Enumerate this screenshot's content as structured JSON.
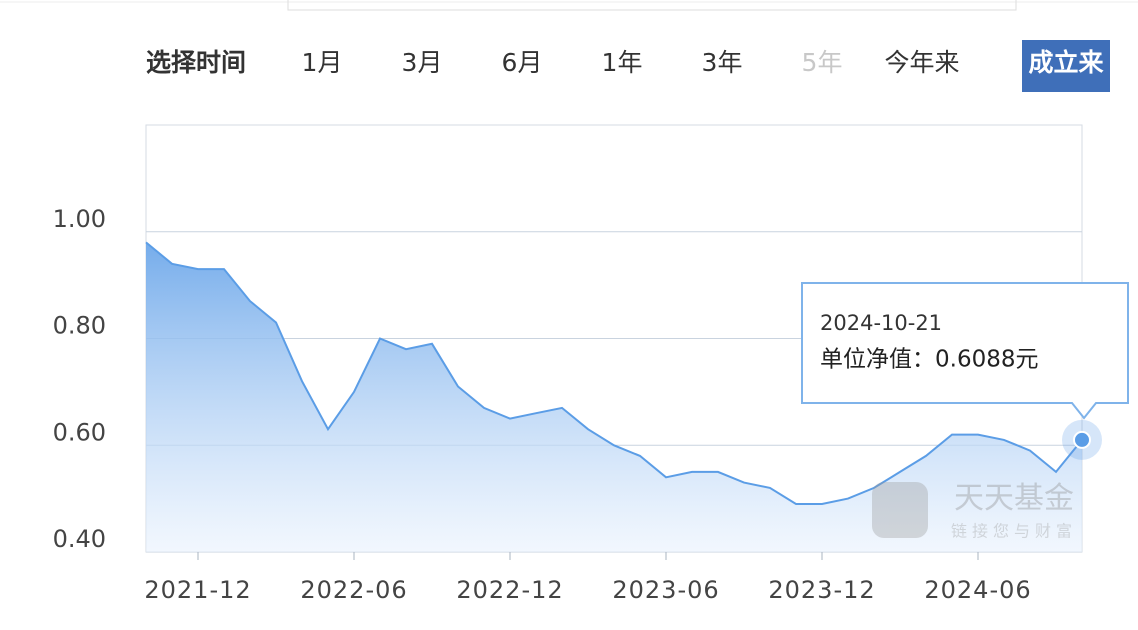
{
  "range_selector": {
    "label": "选择时间",
    "options": [
      {
        "label": "1月"
      },
      {
        "label": "3月"
      },
      {
        "label": "6月"
      },
      {
        "label": "1年"
      },
      {
        "label": "3年"
      },
      {
        "label": "5年",
        "disabled": true
      },
      {
        "label": "今年来"
      },
      {
        "label": "成立来",
        "selected": true
      }
    ]
  },
  "chart_data": {
    "type": "area",
    "x": [
      "2021-10",
      "2021-11",
      "2021-12",
      "2022-01",
      "2022-02",
      "2022-03",
      "2022-04",
      "2022-05",
      "2022-06",
      "2022-07",
      "2022-08",
      "2022-09",
      "2022-10",
      "2022-11",
      "2022-12",
      "2023-01",
      "2023-02",
      "2023-03",
      "2023-04",
      "2023-05",
      "2023-06",
      "2023-07",
      "2023-08",
      "2023-09",
      "2023-10",
      "2023-11",
      "2023-12",
      "2024-01",
      "2024-02",
      "2024-03",
      "2024-04",
      "2024-05",
      "2024-06",
      "2024-07",
      "2024-08",
      "2024-09",
      "2024-10"
    ],
    "values": [
      0.98,
      0.94,
      0.93,
      0.93,
      0.87,
      0.83,
      0.72,
      0.63,
      0.7,
      0.8,
      0.78,
      0.79,
      0.71,
      0.67,
      0.65,
      0.66,
      0.67,
      0.63,
      0.6,
      0.58,
      0.54,
      0.55,
      0.55,
      0.53,
      0.52,
      0.49,
      0.49,
      0.5,
      0.52,
      0.55,
      0.58,
      0.62,
      0.62,
      0.61,
      0.59,
      0.55,
      0.61
    ],
    "color": "#5b9de6",
    "xlim": [
      "2021-10",
      "2024-10"
    ],
    "xticks": [
      "2021-12",
      "2022-06",
      "2022-12",
      "2023-06",
      "2023-12",
      "2024-06"
    ],
    "ylim": [
      0.4,
      1.2
    ],
    "yticks": [
      {
        "value": 0.4,
        "label": "0.40"
      },
      {
        "value": 0.6,
        "label": "0.60"
      },
      {
        "value": 0.8,
        "label": "0.80"
      },
      {
        "value": 1.0,
        "label": "1.00"
      }
    ],
    "grid": true,
    "tooltip": {
      "date": "2024-10-21",
      "text": "单位净值：0.6088元"
    },
    "watermark": {
      "title": "天天基金",
      "subtitle": "链接您与财富"
    }
  }
}
